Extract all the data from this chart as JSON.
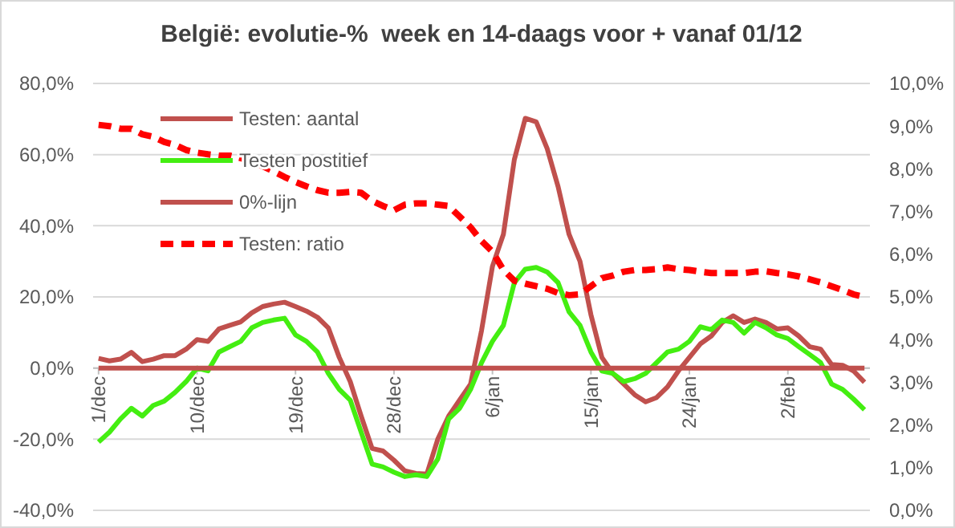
{
  "chart_data": {
    "type": "line",
    "title": "België: evolutie-%  week en 14-daags voor + vanaf 01/12",
    "categories": [
      "1/dec",
      null,
      null,
      null,
      null,
      null,
      null,
      null,
      null,
      "10/dec",
      null,
      null,
      null,
      null,
      null,
      null,
      null,
      null,
      "19/dec",
      null,
      null,
      null,
      null,
      null,
      null,
      null,
      null,
      "28/dec",
      null,
      null,
      null,
      null,
      null,
      null,
      null,
      null,
      "6/jan",
      null,
      null,
      null,
      null,
      null,
      null,
      null,
      null,
      "15/jan",
      null,
      null,
      null,
      null,
      null,
      null,
      null,
      null,
      "24/jan",
      null,
      null,
      null,
      null,
      null,
      null,
      null,
      null,
      "2/feb",
      null,
      null,
      null,
      null,
      null,
      null,
      null
    ],
    "series": [
      {
        "name": "Testen: aantal",
        "color": "#c0504d",
        "values": [
          2.7,
          2,
          2.5,
          4.4,
          1.8,
          2.5,
          3.5,
          3.5,
          5.3,
          8,
          7.5,
          11,
          12,
          13,
          15.5,
          17.3,
          18,
          18.5,
          17.3,
          16,
          14.3,
          11.3,
          3,
          -3.8,
          -13.5,
          -22.6,
          -23.3,
          -25.9,
          -28.9,
          -29.6,
          -29.8,
          -20,
          -13.5,
          -9,
          -4.5,
          10.5,
          28.6,
          37.6,
          58.6,
          70.2,
          69.2,
          61.7,
          51,
          37.6,
          30,
          15,
          3,
          -1.5,
          -4.5,
          -7.5,
          -9.5,
          -8.3,
          -5.3,
          -0.8,
          3,
          6.8,
          9,
          12.8,
          14.7,
          12.8,
          13.8,
          12.8,
          11,
          11.3,
          9,
          6,
          5.3,
          1,
          0.8,
          -0.8,
          -4
        ]
      },
      {
        "name": "Testen postitief",
        "color": "#44ee11",
        "values": [
          -20.8,
          -18,
          -14.3,
          -11.3,
          -13.5,
          -10.5,
          -9.3,
          -6.8,
          -3.8,
          0,
          -0.8,
          4.5,
          6,
          7.5,
          11.3,
          12.8,
          13.5,
          14,
          9.3,
          7.5,
          4.5,
          -1.5,
          -6,
          -9,
          -18,
          -27,
          -27.8,
          -29.3,
          -30.5,
          -30,
          -30.5,
          -25.6,
          -14.3,
          -11.3,
          -6,
          1.5,
          7.5,
          12,
          24,
          27.8,
          28.3,
          27,
          24,
          15.8,
          12,
          4.5,
          -0.8,
          -1.5,
          -3.8,
          -3,
          -1.5,
          1.5,
          4.5,
          5.3,
          7.5,
          11.6,
          10.8,
          13.5,
          12.8,
          9.8,
          12.8,
          11.3,
          9.3,
          8.3,
          6,
          3.8,
          1.5,
          -4.5,
          -6,
          -8.7,
          -11.7
        ]
      },
      {
        "name": "0%-lijn",
        "color": "#c0504d",
        "values": [
          0,
          0,
          0,
          0,
          0,
          0,
          0,
          0,
          0,
          0,
          0,
          0,
          0,
          0,
          0,
          0,
          0,
          0,
          0,
          0,
          0,
          0,
          0,
          0,
          0,
          0,
          0,
          0,
          0,
          0,
          0,
          0,
          0,
          0,
          0,
          0,
          0,
          0,
          0,
          0,
          0,
          0,
          0,
          0,
          0,
          0,
          0,
          0,
          0,
          0,
          0,
          0,
          0,
          0,
          0,
          0,
          0,
          0,
          0,
          0,
          0,
          0,
          0,
          0,
          0,
          0,
          0,
          0,
          0,
          0,
          0
        ]
      },
      {
        "name": "Testen: ratio",
        "color": "#ff0000",
        "axis": "y2",
        "line_style": "dashed",
        "values": [
          9.03,
          9.0,
          8.94,
          8.94,
          8.81,
          8.75,
          8.63,
          8.56,
          8.44,
          8.38,
          8.34,
          8.31,
          8.31,
          8.25,
          8.19,
          8.06,
          7.94,
          7.81,
          7.69,
          7.59,
          7.5,
          7.44,
          7.44,
          7.46,
          7.44,
          7.25,
          7.13,
          7.03,
          7.16,
          7.19,
          7.19,
          7.16,
          7.13,
          6.88,
          6.63,
          6.31,
          6.06,
          5.63,
          5.38,
          5.31,
          5.25,
          5.19,
          5.09,
          5.04,
          5.06,
          5.25,
          5.44,
          5.5,
          5.59,
          5.63,
          5.63,
          5.65,
          5.69,
          5.65,
          5.63,
          5.59,
          5.56,
          5.56,
          5.56,
          5.56,
          5.59,
          5.6,
          5.56,
          5.53,
          5.48,
          5.41,
          5.34,
          5.25,
          5.16,
          5.06,
          5.0
        ]
      }
    ],
    "ylim": [
      -40,
      80
    ],
    "yticks": [
      {
        "value": -40,
        "label": "-40,0%"
      },
      {
        "value": -20,
        "label": "-20,0%"
      },
      {
        "value": 0,
        "label": "0,0%"
      },
      {
        "value": 20,
        "label": "20,0%"
      },
      {
        "value": 40,
        "label": "40,0%"
      },
      {
        "value": 60,
        "label": "60,0%"
      },
      {
        "value": 80,
        "label": "80,0%"
      }
    ],
    "y2lim": [
      0,
      10
    ],
    "y2ticks": [
      {
        "value": 0,
        "label": "0,0%"
      },
      {
        "value": 1,
        "label": "1,0%"
      },
      {
        "value": 2,
        "label": "2,0%"
      },
      {
        "value": 3,
        "label": "3,0%"
      },
      {
        "value": 4,
        "label": "4,0%"
      },
      {
        "value": 5,
        "label": "5,0%"
      },
      {
        "value": 6,
        "label": "6,0%"
      },
      {
        "value": 7,
        "label": "7,0%"
      },
      {
        "value": 8,
        "label": "8,0%"
      },
      {
        "value": 9,
        "label": "9,0%"
      },
      {
        "value": 10,
        "label": "10,0%"
      }
    ],
    "grid": "y",
    "legend": "top left"
  }
}
